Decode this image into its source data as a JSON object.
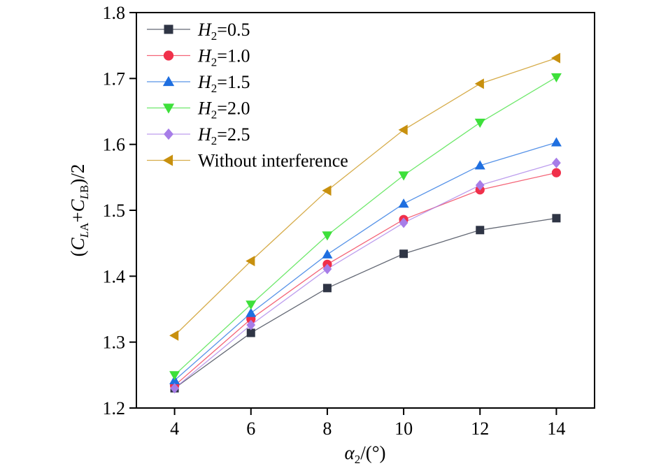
{
  "chart_data": {
    "type": "line",
    "xlabel": {
      "alpha": "α",
      "sub": "2",
      "rest": "/(°)"
    },
    "ylabel": {
      "p1": "(",
      "C1": "C",
      "s1": "L",
      "s1b": "A",
      "plus": "+",
      "C2": "C",
      "s2": "L",
      "s2b": "B",
      "rest": ")/2"
    },
    "x": [
      4,
      6,
      8,
      10,
      12,
      14
    ],
    "xlim": [
      3,
      15
    ],
    "ylim": [
      1.2,
      1.8
    ],
    "xticks": [
      "4",
      "6",
      "8",
      "10",
      "12",
      "14"
    ],
    "yticks": [
      "1.2",
      "1.3",
      "1.4",
      "1.5",
      "1.6",
      "1.7",
      "1.8"
    ],
    "legend_position": "top-left",
    "series": [
      {
        "H": "H",
        "sub": "2",
        "eq": "=0.5",
        "color": "#2f3545",
        "marker": "square",
        "values": [
          1.23,
          1.314,
          1.382,
          1.434,
          1.47,
          1.488
        ]
      },
      {
        "H": "H",
        "sub": "2",
        "eq": "=1.0",
        "color": "#f0304a",
        "marker": "circle",
        "values": [
          1.234,
          1.335,
          1.418,
          1.486,
          1.531,
          1.557
        ]
      },
      {
        "H": "H",
        "sub": "2",
        "eq": "=1.5",
        "color": "#1f6fe0",
        "marker": "triangle-up",
        "values": [
          1.242,
          1.344,
          1.433,
          1.51,
          1.568,
          1.603
        ]
      },
      {
        "H": "H",
        "sub": "2",
        "eq": "=2.0",
        "color": "#3de03a",
        "marker": "triangle-down",
        "values": [
          1.25,
          1.357,
          1.462,
          1.553,
          1.633,
          1.702
        ]
      },
      {
        "H": "H",
        "sub": "2",
        "eq": "=2.5",
        "color": "#a77de8",
        "marker": "diamond",
        "values": [
          1.23,
          1.326,
          1.411,
          1.481,
          1.538,
          1.572
        ]
      },
      {
        "label": "Without interference",
        "color": "#c8900e",
        "marker": "triangle-left",
        "values": [
          1.31,
          1.423,
          1.53,
          1.622,
          1.692,
          1.731
        ]
      }
    ]
  }
}
